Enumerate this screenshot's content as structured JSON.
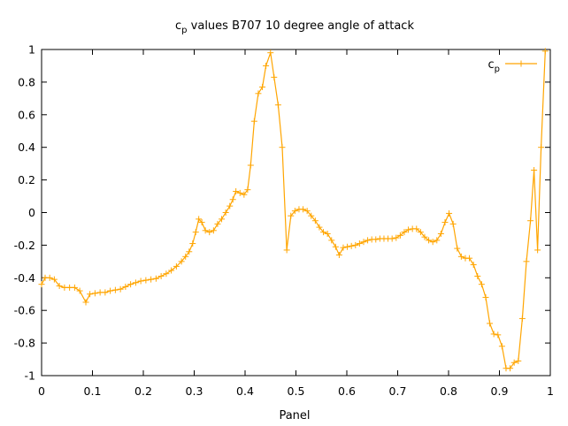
{
  "chart_data": {
    "type": "line",
    "title": {
      "base": "c",
      "sub": "p",
      "rest": " values B707 10 degree angle of attack"
    },
    "xlabel": "Panel",
    "ylabel": "",
    "xlim": [
      0,
      1
    ],
    "ylim": [
      -1,
      1
    ],
    "x_ticks": [
      "0",
      "0.1",
      "0.2",
      "0.3",
      "0.4",
      "0.5",
      "0.6",
      "0.7",
      "0.8",
      "0.9",
      "1"
    ],
    "y_ticks": [
      "-1",
      "-0.8",
      "-0.6",
      "-0.4",
      "-0.2",
      "0",
      "0.2",
      "0.4",
      "0.6",
      "0.8",
      "1"
    ],
    "grid": false,
    "legend": "top-right",
    "series": [
      {
        "name": {
          "base": "c",
          "sub": "p"
        },
        "color": "#ffa500",
        "marker": "plus",
        "points": [
          [
            0.0,
            -0.44
          ],
          [
            0.007,
            -0.4
          ],
          [
            0.016,
            -0.4
          ],
          [
            0.025,
            -0.41
          ],
          [
            0.035,
            -0.45
          ],
          [
            0.045,
            -0.46
          ],
          [
            0.055,
            -0.46
          ],
          [
            0.065,
            -0.46
          ],
          [
            0.075,
            -0.48
          ],
          [
            0.087,
            -0.55
          ],
          [
            0.095,
            -0.5
          ],
          [
            0.105,
            -0.495
          ],
          [
            0.115,
            -0.49
          ],
          [
            0.125,
            -0.49
          ],
          [
            0.135,
            -0.48
          ],
          [
            0.145,
            -0.475
          ],
          [
            0.155,
            -0.47
          ],
          [
            0.165,
            -0.455
          ],
          [
            0.175,
            -0.44
          ],
          [
            0.185,
            -0.43
          ],
          [
            0.195,
            -0.42
          ],
          [
            0.205,
            -0.415
          ],
          [
            0.215,
            -0.41
          ],
          [
            0.225,
            -0.405
          ],
          [
            0.235,
            -0.39
          ],
          [
            0.245,
            -0.375
          ],
          [
            0.255,
            -0.355
          ],
          [
            0.265,
            -0.33
          ],
          [
            0.275,
            -0.3
          ],
          [
            0.283,
            -0.27
          ],
          [
            0.29,
            -0.24
          ],
          [
            0.297,
            -0.19
          ],
          [
            0.303,
            -0.12
          ],
          [
            0.309,
            -0.04
          ],
          [
            0.315,
            -0.06
          ],
          [
            0.322,
            -0.11
          ],
          [
            0.33,
            -0.12
          ],
          [
            0.338,
            -0.11
          ],
          [
            0.346,
            -0.07
          ],
          [
            0.354,
            -0.04
          ],
          [
            0.362,
            0.0
          ],
          [
            0.37,
            0.04
          ],
          [
            0.376,
            0.08
          ],
          [
            0.382,
            0.13
          ],
          [
            0.39,
            0.12
          ],
          [
            0.398,
            0.11
          ],
          [
            0.405,
            0.14
          ],
          [
            0.411,
            0.29
          ],
          [
            0.418,
            0.56
          ],
          [
            0.426,
            0.73
          ],
          [
            0.434,
            0.77
          ],
          [
            0.441,
            0.9
          ],
          [
            0.45,
            0.98
          ],
          [
            0.457,
            0.83
          ],
          [
            0.465,
            0.66
          ],
          [
            0.473,
            0.4
          ],
          [
            0.482,
            -0.23
          ],
          [
            0.49,
            -0.02
          ],
          [
            0.498,
            0.01
          ],
          [
            0.506,
            0.02
          ],
          [
            0.514,
            0.02
          ],
          [
            0.522,
            0.01
          ],
          [
            0.53,
            -0.02
          ],
          [
            0.538,
            -0.05
          ],
          [
            0.546,
            -0.09
          ],
          [
            0.554,
            -0.12
          ],
          [
            0.562,
            -0.13
          ],
          [
            0.57,
            -0.17
          ],
          [
            0.578,
            -0.21
          ],
          [
            0.585,
            -0.26
          ],
          [
            0.593,
            -0.215
          ],
          [
            0.601,
            -0.21
          ],
          [
            0.609,
            -0.205
          ],
          [
            0.617,
            -0.2
          ],
          [
            0.625,
            -0.19
          ],
          [
            0.633,
            -0.18
          ],
          [
            0.641,
            -0.17
          ],
          [
            0.649,
            -0.165
          ],
          [
            0.657,
            -0.165
          ],
          [
            0.665,
            -0.16
          ],
          [
            0.673,
            -0.16
          ],
          [
            0.681,
            -0.16
          ],
          [
            0.689,
            -0.16
          ],
          [
            0.697,
            -0.155
          ],
          [
            0.705,
            -0.14
          ],
          [
            0.713,
            -0.12
          ],
          [
            0.721,
            -0.105
          ],
          [
            0.729,
            -0.1
          ],
          [
            0.737,
            -0.1
          ],
          [
            0.745,
            -0.12
          ],
          [
            0.753,
            -0.15
          ],
          [
            0.761,
            -0.17
          ],
          [
            0.769,
            -0.18
          ],
          [
            0.777,
            -0.17
          ],
          [
            0.785,
            -0.13
          ],
          [
            0.793,
            -0.06
          ],
          [
            0.801,
            -0.005
          ],
          [
            0.809,
            -0.07
          ],
          [
            0.817,
            -0.22
          ],
          [
            0.825,
            -0.27
          ],
          [
            0.833,
            -0.28
          ],
          [
            0.841,
            -0.28
          ],
          [
            0.849,
            -0.32
          ],
          [
            0.857,
            -0.39
          ],
          [
            0.865,
            -0.44
          ],
          [
            0.873,
            -0.52
          ],
          [
            0.881,
            -0.68
          ],
          [
            0.889,
            -0.745
          ],
          [
            0.897,
            -0.75
          ],
          [
            0.905,
            -0.82
          ],
          [
            0.913,
            -0.955
          ],
          [
            0.921,
            -0.955
          ],
          [
            0.929,
            -0.92
          ],
          [
            0.937,
            -0.91
          ],
          [
            0.945,
            -0.65
          ],
          [
            0.953,
            -0.3
          ],
          [
            0.961,
            -0.05
          ],
          [
            0.968,
            0.26
          ],
          [
            0.975,
            -0.23
          ],
          [
            0.982,
            0.4
          ],
          [
            0.99,
            0.99
          ]
        ]
      }
    ]
  }
}
